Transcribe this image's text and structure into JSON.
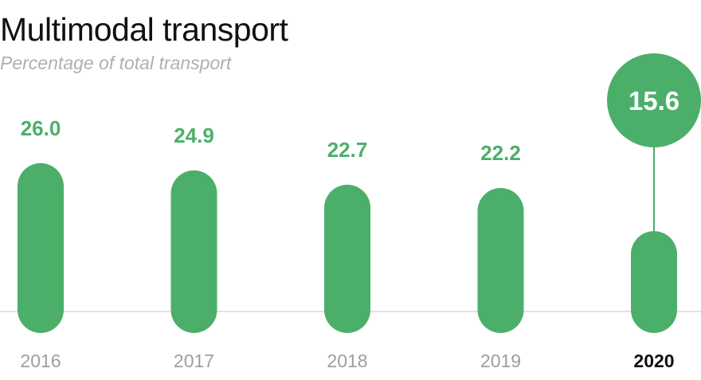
{
  "chart_data": {
    "type": "bar",
    "title": "Multimodal transport",
    "subtitle": "Percentage of total transport",
    "categories": [
      "2016",
      "2017",
      "2018",
      "2019",
      "2020"
    ],
    "values": [
      26.0,
      24.9,
      22.7,
      22.2,
      15.6
    ],
    "value_labels": [
      "26.0",
      "24.9",
      "22.7",
      "22.2",
      "15.6"
    ],
    "highlight_category": "2020",
    "grid": false,
    "legend": "none",
    "colors": {
      "bar": "#4caf69",
      "axis": "#d9d9d9",
      "category_label": "#9e9e9e",
      "highlight_label": "#111111"
    }
  }
}
